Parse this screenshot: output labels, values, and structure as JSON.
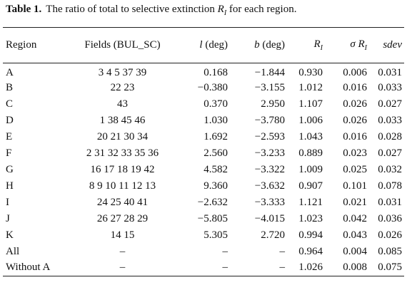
{
  "caption": {
    "label": "Table 1.",
    "text": "The ratio of total to selective extinction",
    "symbol": "R",
    "symbol_sub": "I",
    "text_end": "for each region."
  },
  "header": [
    {
      "text": "Region"
    },
    {
      "text": "Fields (BUL_SC)"
    },
    {
      "sym": "l",
      "text": "(deg)"
    },
    {
      "sym": "b",
      "text": "(deg)"
    },
    {
      "sym": "R",
      "sub": "I"
    },
    {
      "sym": "σ",
      "sym2": "R",
      "sub": "I"
    },
    {
      "sym": "sdev"
    }
  ],
  "rows": [
    [
      "A",
      "3 4 5 37 39",
      "0.168",
      "−1.844",
      "0.930",
      "0.006",
      "0.031"
    ],
    [
      "B",
      "22 23",
      "−0.380",
      "−3.155",
      "1.012",
      "0.016",
      "0.033"
    ],
    [
      "C",
      "43",
      "0.370",
      "2.950",
      "1.107",
      "0.026",
      "0.027"
    ],
    [
      "D",
      "1 38 45 46",
      "1.030",
      "−3.780",
      "1.006",
      "0.026",
      "0.033"
    ],
    [
      "E",
      "20 21 30 34",
      "1.692",
      "−2.593",
      "1.043",
      "0.016",
      "0.028"
    ],
    [
      "F",
      "2 31 32 33 35 36",
      "2.560",
      "−3.233",
      "0.889",
      "0.023",
      "0.027"
    ],
    [
      "G",
      "16 17 18 19 42",
      "4.582",
      "−3.322",
      "1.009",
      "0.025",
      "0.032"
    ],
    [
      "H",
      "8 9 10 11 12 13",
      "9.360",
      "−3.632",
      "0.907",
      "0.101",
      "0.078"
    ],
    [
      "I",
      "24 25 40 41",
      "−2.632",
      "−3.333",
      "1.121",
      "0.021",
      "0.031"
    ],
    [
      "J",
      "26 27 28 29",
      "−5.805",
      "−4.015",
      "1.023",
      "0.042",
      "0.036"
    ],
    [
      "K",
      "14 15",
      "5.305",
      "2.720",
      "0.994",
      "0.043",
      "0.026"
    ],
    [
      "All",
      "–",
      "–",
      "–",
      "0.964",
      "0.004",
      "0.085"
    ],
    [
      "Without A",
      "–",
      "–",
      "–",
      "1.026",
      "0.008",
      "0.075"
    ]
  ]
}
